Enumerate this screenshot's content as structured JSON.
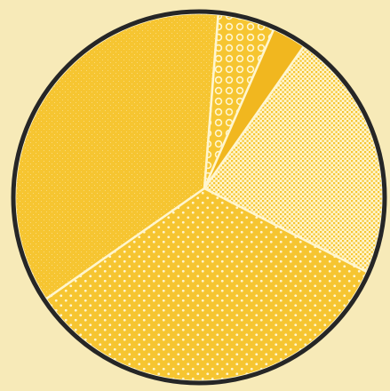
{
  "chart_data": {
    "type": "pie",
    "title": "",
    "legend": "none",
    "colors": {
      "background": "#f7eab8",
      "fill": "#f6c531",
      "fill_dark": "#f1b71f",
      "pattern": "#fff6cf",
      "outline": "#262626"
    },
    "slices": [
      {
        "label": "",
        "value": 5.0,
        "pattern": "circles"
      },
      {
        "label": "",
        "value": 3.0,
        "pattern": "solid"
      },
      {
        "label": "",
        "value": 22.0,
        "pattern": "crosshatch"
      },
      {
        "label": "",
        "value": 34.0,
        "pattern": "dots"
      },
      {
        "label": "",
        "value": 36.0,
        "pattern": "fine-stipple"
      }
    ]
  }
}
